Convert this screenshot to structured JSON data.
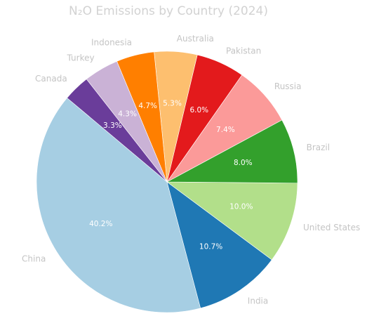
{
  "chart_data": {
    "type": "pie",
    "title": "N₂O Emissions by Country (2024)",
    "slices": [
      {
        "label": "China",
        "value": 40.2,
        "pct_text": "40.2%",
        "color": "#a6cee3"
      },
      {
        "label": "India",
        "value": 10.7,
        "pct_text": "10.7%",
        "color": "#1f78b4"
      },
      {
        "label": "United States",
        "value": 10.0,
        "pct_text": "10.0%",
        "color": "#b2df8a"
      },
      {
        "label": "Brazil",
        "value": 8.0,
        "pct_text": "8.0%",
        "color": "#33a02c"
      },
      {
        "label": "Russia",
        "value": 7.4,
        "pct_text": "7.4%",
        "color": "#fb9a99"
      },
      {
        "label": "Pakistan",
        "value": 6.0,
        "pct_text": "6.0%",
        "color": "#e31a1c"
      },
      {
        "label": "Australia",
        "value": 5.3,
        "pct_text": "5.3%",
        "color": "#fdbf6f"
      },
      {
        "label": "Indonesia",
        "value": 4.7,
        "pct_text": "4.7%",
        "color": "#ff7f00"
      },
      {
        "label": "Turkey",
        "value": 4.3,
        "pct_text": "4.3%",
        "color": "#cab2d6"
      },
      {
        "label": "Canada",
        "value": 3.3,
        "pct_text": "3.3%",
        "color": "#6a3d9a"
      }
    ],
    "start_angle_deg": 140,
    "direction": "counterclockwise"
  }
}
